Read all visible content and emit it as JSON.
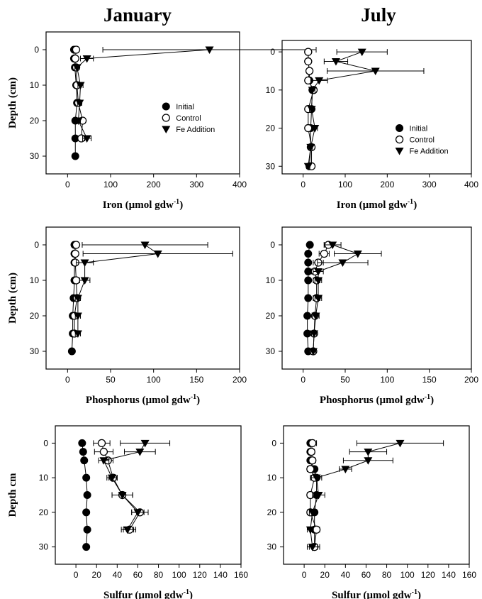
{
  "columns": [
    "January",
    "July"
  ],
  "chart_data": [
    {
      "type": "scatter",
      "column": "January",
      "xlabel_main": "Iron (µmol gdw",
      "xlabel_sup": "-1",
      "xlabel_end": ")",
      "ylabel": "Depth (cm)",
      "xlim": [
        -50,
        400
      ],
      "ylim": [
        35,
        -5
      ],
      "xticks": [
        0,
        100,
        200,
        300,
        400
      ],
      "yticks": [
        0,
        10,
        20,
        30
      ],
      "legend": [
        "Initial",
        "Control",
        "Fe Addition"
      ],
      "legend_position": "center-right",
      "series": [
        {
          "name": "Initial",
          "marker": "filled-circle",
          "points": [
            {
              "x": 15,
              "y": 0
            },
            {
              "x": 15,
              "y": 2.5
            },
            {
              "x": 17,
              "y": 5
            },
            {
              "x": 20,
              "y": 10
            },
            {
              "x": 22,
              "y": 15
            },
            {
              "x": 18,
              "y": 20
            },
            {
              "x": 18,
              "y": 25
            },
            {
              "x": 18,
              "y": 30
            }
          ]
        },
        {
          "name": "Control",
          "marker": "open-circle",
          "points": [
            {
              "x": 20,
              "y": 0,
              "err": 5
            },
            {
              "x": 18,
              "y": 2.5,
              "err": 4
            },
            {
              "x": 20,
              "y": 5,
              "err": 5
            },
            {
              "x": 22,
              "y": 10,
              "err": 5
            },
            {
              "x": 25,
              "y": 15,
              "err": 6
            },
            {
              "x": 35,
              "y": 20,
              "err": 6
            },
            {
              "x": 32,
              "y": 25,
              "err": 8
            }
          ]
        },
        {
          "name": "Fe Addition",
          "marker": "filled-triangle-down",
          "points": [
            {
              "x": 330,
              "y": 0,
              "err": 248
            },
            {
              "x": 45,
              "y": 2.5,
              "err": 15
            },
            {
              "x": 22,
              "y": 5,
              "err": 5
            },
            {
              "x": 30,
              "y": 10,
              "err": 6
            },
            {
              "x": 28,
              "y": 15,
              "err": 5
            },
            {
              "x": 25,
              "y": 20,
              "err": 5
            },
            {
              "x": 45,
              "y": 25,
              "err": 10
            }
          ]
        }
      ]
    },
    {
      "type": "scatter",
      "column": "July",
      "xlabel_main": "Iron (µmol gdw",
      "xlabel_sup": "-1",
      "xlabel_end": ")",
      "ylabel": "",
      "xlim": [
        -50,
        400
      ],
      "ylim": [
        32,
        -3
      ],
      "xticks": [
        0,
        100,
        200,
        300,
        400
      ],
      "yticks": [
        0,
        10,
        20,
        30
      ],
      "legend": [
        "Initial",
        "Control",
        "Fe Addition"
      ],
      "legend_position": "center-right",
      "series": [
        {
          "name": "Initial",
          "marker": "filled-circle",
          "points": [
            {
              "x": 12,
              "y": 0
            },
            {
              "x": 12,
              "y": 2.5
            },
            {
              "x": 15,
              "y": 5
            },
            {
              "x": 15,
              "y": 7.5
            },
            {
              "x": 22,
              "y": 10
            },
            {
              "x": 20,
              "y": 15
            },
            {
              "x": 18,
              "y": 20
            },
            {
              "x": 18,
              "y": 25
            },
            {
              "x": 15,
              "y": 30
            }
          ]
        },
        {
          "name": "Control",
          "marker": "open-circle",
          "points": [
            {
              "x": 12,
              "y": 0,
              "err": 3
            },
            {
              "x": 12,
              "y": 2.5,
              "err": 3
            },
            {
              "x": 15,
              "y": 5,
              "err": 3
            },
            {
              "x": 12,
              "y": 7.5,
              "err": 4
            },
            {
              "x": 25,
              "y": 10,
              "err": 6
            },
            {
              "x": 12,
              "y": 15,
              "err": 3
            },
            {
              "x": 12,
              "y": 20,
              "err": 3
            },
            {
              "x": 20,
              "y": 25,
              "err": 4
            },
            {
              "x": 20,
              "y": 30,
              "err": 4
            }
          ]
        },
        {
          "name": "Fe Addition",
          "marker": "filled-triangle-down",
          "points": [
            {
              "x": 140,
              "y": 0,
              "err": 60
            },
            {
              "x": 78,
              "y": 2.5,
              "err": 28
            },
            {
              "x": 172,
              "y": 5,
              "err": 115
            },
            {
              "x": 38,
              "y": 7.5,
              "err": 20
            },
            {
              "x": 22,
              "y": 10,
              "err": 6
            },
            {
              "x": 20,
              "y": 15,
              "err": 5
            },
            {
              "x": 28,
              "y": 20,
              "err": 6
            },
            {
              "x": 18,
              "y": 25,
              "err": 4
            },
            {
              "x": 12,
              "y": 30,
              "err": 4
            }
          ]
        }
      ]
    },
    {
      "type": "scatter",
      "column": "January",
      "xlabel_main": "Phosphorus (µmol gdw",
      "xlabel_sup": "-1",
      "xlabel_end": ")",
      "ylabel": "Depth (cm)",
      "xlim": [
        -25,
        200
      ],
      "ylim": [
        35,
        -5
      ],
      "xticks": [
        0,
        50,
        100,
        150,
        200
      ],
      "yticks": [
        0,
        10,
        20,
        30
      ],
      "series": [
        {
          "name": "Initial",
          "marker": "filled-circle",
          "points": [
            {
              "x": 5,
              "y": 30
            },
            {
              "x": 6,
              "y": 25
            },
            {
              "x": 6,
              "y": 20
            },
            {
              "x": 7,
              "y": 15
            },
            {
              "x": 8,
              "y": 10
            },
            {
              "x": 8,
              "y": 5
            },
            {
              "x": 8,
              "y": 2.5
            },
            {
              "x": 8,
              "y": 0
            }
          ]
        },
        {
          "name": "Control",
          "marker": "open-circle",
          "points": [
            {
              "x": 10,
              "y": 0,
              "err": 3
            },
            {
              "x": 9,
              "y": 2.5,
              "err": 3
            },
            {
              "x": 9,
              "y": 5,
              "err": 3
            },
            {
              "x": 10,
              "y": 10,
              "err": 3
            },
            {
              "x": 11,
              "y": 15,
              "err": 3
            },
            {
              "x": 8,
              "y": 20,
              "err": 3
            },
            {
              "x": 8,
              "y": 25,
              "err": 3
            }
          ]
        },
        {
          "name": "Fe Addition",
          "marker": "filled-triangle-down",
          "points": [
            {
              "x": 90,
              "y": 0,
              "err": 73
            },
            {
              "x": 105,
              "y": 2.5,
              "err": 87
            },
            {
              "x": 20,
              "y": 5,
              "err": 10
            },
            {
              "x": 20,
              "y": 10,
              "err": 6
            },
            {
              "x": 12,
              "y": 15,
              "err": 3
            },
            {
              "x": 12,
              "y": 20,
              "err": 3
            },
            {
              "x": 12,
              "y": 25,
              "err": 3
            }
          ]
        }
      ]
    },
    {
      "type": "scatter",
      "column": "July",
      "xlabel_main": "Phosphorus (µmol gdw",
      "xlabel_sup": "-1",
      "xlabel_end": ")",
      "ylabel": "",
      "xlim": [
        -25,
        200
      ],
      "ylim": [
        35,
        -5
      ],
      "xticks": [
        0,
        50,
        100,
        150,
        200
      ],
      "yticks": [
        0,
        10,
        20,
        30
      ],
      "series": [
        {
          "name": "Initial",
          "marker": "filled-circle",
          "points": [
            {
              "x": 8,
              "y": 0
            },
            {
              "x": 6,
              "y": 2.5
            },
            {
              "x": 6,
              "y": 5
            },
            {
              "x": 6,
              "y": 7.5
            },
            {
              "x": 6,
              "y": 10
            },
            {
              "x": 6,
              "y": 15
            },
            {
              "x": 5,
              "y": 20
            },
            {
              "x": 5,
              "y": 25
            },
            {
              "x": 6,
              "y": 30
            }
          ]
        },
        {
          "name": "Control",
          "marker": "open-circle",
          "points": [
            {
              "x": 30,
              "y": 0,
              "err": 5
            },
            {
              "x": 25,
              "y": 2.5,
              "err": 6
            },
            {
              "x": 18,
              "y": 5,
              "err": 6
            },
            {
              "x": 14,
              "y": 7.5,
              "err": 4
            },
            {
              "x": 16,
              "y": 10,
              "err": 4
            },
            {
              "x": 16,
              "y": 15,
              "err": 4
            },
            {
              "x": 14,
              "y": 20,
              "err": 3
            },
            {
              "x": 13,
              "y": 25,
              "err": 3
            },
            {
              "x": 12,
              "y": 30,
              "err": 3
            }
          ]
        },
        {
          "name": "Fe Addition",
          "marker": "filled-triangle-down",
          "points": [
            {
              "x": 35,
              "y": 0,
              "err": 10
            },
            {
              "x": 65,
              "y": 2.5,
              "err": 28
            },
            {
              "x": 47,
              "y": 5,
              "err": 30
            },
            {
              "x": 18,
              "y": 7.5,
              "err": 6
            },
            {
              "x": 18,
              "y": 10,
              "err": 4
            },
            {
              "x": 18,
              "y": 15,
              "err": 4
            },
            {
              "x": 15,
              "y": 20,
              "err": 4
            },
            {
              "x": 13,
              "y": 25,
              "err": 3
            },
            {
              "x": 12,
              "y": 30,
              "err": 3
            }
          ]
        }
      ]
    },
    {
      "type": "scatter",
      "column": "January",
      "xlabel_main": "Sulfur (µmol gdw",
      "xlabel_sup": "-1",
      "xlabel_end": ")",
      "ylabel": "Depth cm",
      "xlim": [
        -20,
        160
      ],
      "ylim": [
        35,
        -5
      ],
      "xticks": [
        0,
        20,
        40,
        60,
        80,
        100,
        120,
        140,
        160
      ],
      "yticks": [
        0,
        10,
        20,
        30
      ],
      "series": [
        {
          "name": "Initial",
          "marker": "filled-circle",
          "points": [
            {
              "x": 6,
              "y": 0
            },
            {
              "x": 7,
              "y": 2.5
            },
            {
              "x": 8,
              "y": 5
            },
            {
              "x": 10,
              "y": 10
            },
            {
              "x": 11,
              "y": 15
            },
            {
              "x": 10,
              "y": 20
            },
            {
              "x": 11,
              "y": 25
            },
            {
              "x": 10,
              "y": 30
            }
          ]
        },
        {
          "name": "Control",
          "marker": "open-circle",
          "points": [
            {
              "x": 25,
              "y": 0,
              "err": 8
            },
            {
              "x": 27,
              "y": 2.5,
              "err": 9
            },
            {
              "x": 31,
              "y": 5,
              "err": 5
            },
            {
              "x": 36,
              "y": 10,
              "err": 4
            },
            {
              "x": 45,
              "y": 15,
              "err": 10
            },
            {
              "x": 62,
              "y": 20,
              "err": 8
            },
            {
              "x": 52,
              "y": 25,
              "err": 6
            }
          ]
        },
        {
          "name": "Fe Addition",
          "marker": "filled-triangle-down",
          "points": [
            {
              "x": 67,
              "y": 0,
              "err": 24
            },
            {
              "x": 62,
              "y": 2.5,
              "err": 15
            },
            {
              "x": 27,
              "y": 5,
              "err": 5
            },
            {
              "x": 35,
              "y": 10,
              "err": 5
            },
            {
              "x": 45,
              "y": 15,
              "err": 10
            },
            {
              "x": 60,
              "y": 20,
              "err": 6
            },
            {
              "x": 50,
              "y": 25,
              "err": 6
            }
          ]
        }
      ]
    },
    {
      "type": "scatter",
      "column": "July",
      "xlabel_main": "Sulfur (µmol gdw",
      "xlabel_sup": "-1",
      "xlabel_end": ")",
      "ylabel": "",
      "xlim": [
        -20,
        160
      ],
      "ylim": [
        35,
        -5
      ],
      "xticks": [
        0,
        20,
        40,
        60,
        80,
        100,
        120,
        140,
        160
      ],
      "yticks": [
        0,
        10,
        20,
        30
      ],
      "series": [
        {
          "name": "Initial",
          "marker": "filled-circle",
          "points": [
            {
              "x": 6,
              "y": 0
            },
            {
              "x": 6,
              "y": 2.5
            },
            {
              "x": 6,
              "y": 5
            },
            {
              "x": 10,
              "y": 7.5
            },
            {
              "x": 12,
              "y": 10
            },
            {
              "x": 12,
              "y": 15
            },
            {
              "x": 10,
              "y": 20
            },
            {
              "x": 10,
              "y": 25
            },
            {
              "x": 10,
              "y": 30
            }
          ]
        },
        {
          "name": "Control",
          "marker": "open-circle",
          "points": [
            {
              "x": 8,
              "y": 0,
              "err": 4
            },
            {
              "x": 7,
              "y": 2.5,
              "err": 3
            },
            {
              "x": 8,
              "y": 5,
              "err": 3
            },
            {
              "x": 6,
              "y": 7.5,
              "err": 3
            },
            {
              "x": 10,
              "y": 10,
              "err": 4
            },
            {
              "x": 6,
              "y": 15,
              "err": 3
            },
            {
              "x": 6,
              "y": 20,
              "err": 3
            },
            {
              "x": 12,
              "y": 25,
              "err": 3
            },
            {
              "x": 10,
              "y": 30,
              "err": 5
            }
          ]
        },
        {
          "name": "Fe Addition",
          "marker": "filled-triangle-down",
          "points": [
            {
              "x": 93,
              "y": 0,
              "err": 42
            },
            {
              "x": 62,
              "y": 2.5,
              "err": 18
            },
            {
              "x": 62,
              "y": 5,
              "err": 24
            },
            {
              "x": 40,
              "y": 7.5,
              "err": 6
            },
            {
              "x": 12,
              "y": 10,
              "err": 5
            },
            {
              "x": 14,
              "y": 15,
              "err": 6
            },
            {
              "x": 8,
              "y": 20,
              "err": 3
            },
            {
              "x": 6,
              "y": 25,
              "err": 3
            },
            {
              "x": 8,
              "y": 30,
              "err": 5
            }
          ]
        }
      ]
    }
  ]
}
